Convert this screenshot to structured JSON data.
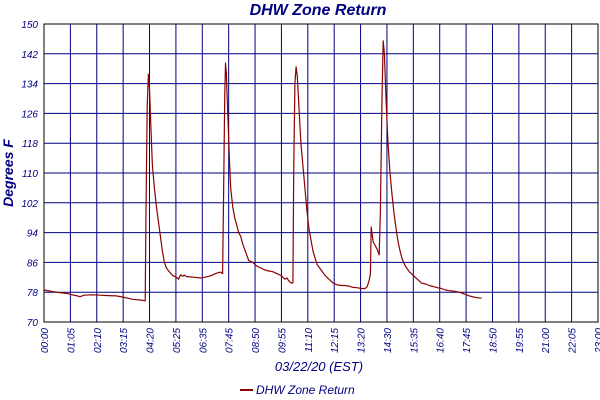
{
  "chart_data": {
    "type": "line",
    "title": "DHW Zone Return",
    "xlabel": "03/22/20 (EST)",
    "ylabel": "Degrees F",
    "ylim": [
      70,
      150
    ],
    "yticks": [
      70,
      78,
      86,
      94,
      102,
      110,
      118,
      126,
      134,
      142,
      150
    ],
    "xlim": [
      0,
      1380
    ],
    "xtick_labels": [
      "00:00",
      "01:05",
      "02:10",
      "03:15",
      "04:20",
      "05:25",
      "06:35",
      "07:45",
      "08:50",
      "09:55",
      "11:10",
      "12:15",
      "13:20",
      "14:30",
      "15:35",
      "16:40",
      "17:45",
      "18:50",
      "19:55",
      "21:00",
      "22:05",
      "23:00"
    ],
    "grid": true,
    "legend": {
      "position": "bottom"
    },
    "colors": {
      "series": "#8b0000",
      "text": "#000080",
      "grid": "#000080",
      "axis": "#000000"
    },
    "series": [
      {
        "name": "DHW Zone Return",
        "points": [
          [
            0,
            78.6
          ],
          [
            20,
            78.2
          ],
          [
            40,
            77.9
          ],
          [
            60,
            77.6
          ],
          [
            70,
            77.3
          ],
          [
            80,
            77.1
          ],
          [
            90,
            76.8
          ],
          [
            100,
            77.2
          ],
          [
            120,
            77.3
          ],
          [
            140,
            77.2
          ],
          [
            160,
            77.1
          ],
          [
            180,
            77.0
          ],
          [
            200,
            76.6
          ],
          [
            220,
            76.1
          ],
          [
            240,
            75.9
          ],
          [
            252,
            75.7
          ],
          [
            254,
            100
          ],
          [
            257,
            128
          ],
          [
            260,
            136.5
          ],
          [
            263,
            132
          ],
          [
            266,
            123
          ],
          [
            270,
            112
          ],
          [
            275,
            106
          ],
          [
            280,
            101
          ],
          [
            285,
            97
          ],
          [
            290,
            93
          ],
          [
            295,
            89
          ],
          [
            300,
            86
          ],
          [
            305,
            84.5
          ],
          [
            312,
            83.5
          ],
          [
            320,
            82.5
          ],
          [
            330,
            82.0
          ],
          [
            335,
            81.5
          ],
          [
            340,
            82.7
          ],
          [
            345,
            82.3
          ],
          [
            350,
            82.6
          ],
          [
            355,
            82.2
          ],
          [
            365,
            82.1
          ],
          [
            375,
            82.0
          ],
          [
            390,
            81.8
          ],
          [
            400,
            82.0
          ],
          [
            415,
            82.4
          ],
          [
            430,
            83.1
          ],
          [
            440,
            83.4
          ],
          [
            445,
            83.0
          ],
          [
            447,
            100
          ],
          [
            450,
            130
          ],
          [
            452,
            139.5
          ],
          [
            454,
            137
          ],
          [
            457,
            128
          ],
          [
            462,
            113
          ],
          [
            465,
            106
          ],
          [
            470,
            101
          ],
          [
            475,
            98
          ],
          [
            480,
            96
          ],
          [
            485,
            94
          ],
          [
            490,
            93
          ],
          [
            495,
            91
          ],
          [
            500,
            89.5
          ],
          [
            505,
            88
          ],
          [
            510,
            86.5
          ],
          [
            520,
            86
          ],
          [
            530,
            85
          ],
          [
            540,
            84.5
          ],
          [
            550,
            84.0
          ],
          [
            560,
            83.7
          ],
          [
            570,
            83.5
          ],
          [
            580,
            83.0
          ],
          [
            590,
            82.5
          ],
          [
            600,
            81.5
          ],
          [
            605,
            81.8
          ],
          [
            610,
            81.0
          ],
          [
            615,
            80.5
          ],
          [
            620,
            80.5
          ],
          [
            622,
            110
          ],
          [
            625,
            134
          ],
          [
            628,
            138.5
          ],
          [
            631,
            136
          ],
          [
            635,
            128
          ],
          [
            640,
            118
          ],
          [
            645,
            112
          ],
          [
            650,
            106
          ],
          [
            655,
            100
          ],
          [
            660,
            95
          ],
          [
            665,
            92
          ],
          [
            670,
            89
          ],
          [
            680,
            85.5
          ],
          [
            690,
            84
          ],
          [
            700,
            82.5
          ],
          [
            710,
            81.5
          ],
          [
            720,
            80.5
          ],
          [
            730,
            80.0
          ],
          [
            740,
            79.8
          ],
          [
            750,
            79.8
          ],
          [
            760,
            79.6
          ],
          [
            770,
            79.3
          ],
          [
            780,
            79.2
          ],
          [
            790,
            79.0
          ],
          [
            800,
            79.0
          ],
          [
            805,
            79.5
          ],
          [
            810,
            81.2
          ],
          [
            813,
            83.0
          ],
          [
            815,
            95.5
          ],
          [
            818,
            93.0
          ],
          [
            820,
            91.5
          ],
          [
            825,
            90.5
          ],
          [
            830,
            89.5
          ],
          [
            835,
            88.0
          ],
          [
            838,
            100
          ],
          [
            842,
            130
          ],
          [
            845,
            145.5
          ],
          [
            848,
            142
          ],
          [
            852,
            130
          ],
          [
            857,
            118
          ],
          [
            862,
            110
          ],
          [
            867,
            104
          ],
          [
            872,
            99
          ],
          [
            877,
            95
          ],
          [
            882,
            91.5
          ],
          [
            887,
            89
          ],
          [
            892,
            87
          ],
          [
            900,
            85
          ],
          [
            910,
            83.5
          ],
          [
            920,
            82.5
          ],
          [
            930,
            81.5
          ],
          [
            940,
            80.5
          ],
          [
            950,
            80.2
          ],
          [
            960,
            79.8
          ],
          [
            970,
            79.5
          ],
          [
            980,
            79.2
          ],
          [
            990,
            79.0
          ],
          [
            1000,
            78.6
          ],
          [
            1010,
            78.4
          ],
          [
            1020,
            78.3
          ],
          [
            1030,
            78.1
          ],
          [
            1040,
            77.8
          ],
          [
            1050,
            77.4
          ],
          [
            1060,
            77.0
          ],
          [
            1070,
            76.7
          ],
          [
            1080,
            76.5
          ],
          [
            1090,
            76.4
          ]
        ]
      }
    ]
  }
}
